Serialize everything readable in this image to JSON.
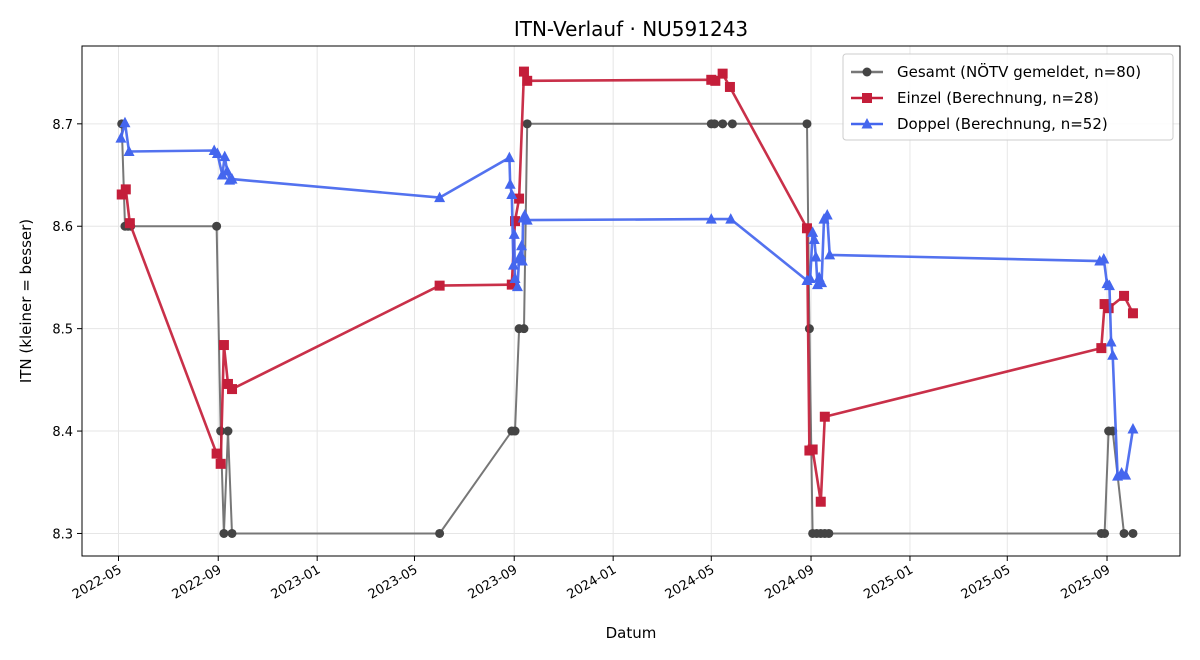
{
  "chart_data": {
    "type": "line",
    "title": "ITN-Verlauf · NU591243",
    "xlabel": "Datum",
    "ylabel": "ITN  (kleiner = besser)",
    "xlim": [
      "2022-03-17",
      "2025-11-30"
    ],
    "ylim": [
      8.278,
      8.776
    ],
    "x_ticks": [
      "2022-05",
      "2022-09",
      "2023-01",
      "2023-05",
      "2023-09",
      "2024-01",
      "2024-05",
      "2024-09",
      "2025-01",
      "2025-05",
      "2025-09"
    ],
    "y_ticks": [
      8.3,
      8.4,
      8.5,
      8.6,
      8.7
    ],
    "grid": true,
    "legend_position": "top-right",
    "series": [
      {
        "name": "Gesamt (NÖTV gemeldet, n=80)",
        "color": "#555555",
        "marker": "circle",
        "points": [
          [
            "2022-05-05",
            8.7
          ],
          [
            "2022-05-09",
            8.6
          ],
          [
            "2022-05-13",
            8.6
          ],
          [
            "2022-05-16",
            8.6
          ],
          [
            "2022-08-30",
            8.6
          ],
          [
            "2022-09-04",
            8.4
          ],
          [
            "2022-09-08",
            8.3
          ],
          [
            "2022-09-13",
            8.4
          ],
          [
            "2022-09-18",
            8.3
          ],
          [
            "2023-06-01",
            8.3
          ],
          [
            "2023-08-29",
            8.4
          ],
          [
            "2023-09-02",
            8.4
          ],
          [
            "2023-09-07",
            8.5
          ],
          [
            "2023-09-13",
            8.5
          ],
          [
            "2023-09-17",
            8.7
          ],
          [
            "2024-05-01",
            8.7
          ],
          [
            "2024-05-05",
            8.7
          ],
          [
            "2024-05-15",
            8.7
          ],
          [
            "2024-05-27",
            8.7
          ],
          [
            "2024-08-27",
            8.7
          ],
          [
            "2024-08-30",
            8.5
          ],
          [
            "2024-09-03",
            8.3
          ],
          [
            "2024-09-08",
            8.3
          ],
          [
            "2024-09-13",
            8.3
          ],
          [
            "2024-09-18",
            8.3
          ],
          [
            "2024-09-23",
            8.3
          ],
          [
            "2025-08-25",
            8.3
          ],
          [
            "2025-08-29",
            8.3
          ],
          [
            "2025-09-03",
            8.4
          ],
          [
            "2025-09-08",
            8.4
          ],
          [
            "2025-09-22",
            8.3
          ],
          [
            "2025-10-03",
            8.3
          ]
        ]
      },
      {
        "name": "Einzel (Berechnung, n=28)",
        "color": "#c41e3a",
        "marker": "square",
        "points": [
          [
            "2022-05-05",
            8.631
          ],
          [
            "2022-05-10",
            8.636
          ],
          [
            "2022-05-15",
            8.603
          ],
          [
            "2022-08-30",
            8.378
          ],
          [
            "2022-09-04",
            8.368
          ],
          [
            "2022-09-08",
            8.484
          ],
          [
            "2022-09-13",
            8.446
          ],
          [
            "2022-09-18",
            8.441
          ],
          [
            "2023-06-01",
            8.542
          ],
          [
            "2023-08-29",
            8.543
          ],
          [
            "2023-09-02",
            8.605
          ],
          [
            "2023-09-07",
            8.627
          ],
          [
            "2023-09-13",
            8.751
          ],
          [
            "2023-09-17",
            8.742
          ],
          [
            "2024-05-01",
            8.743
          ],
          [
            "2024-05-06",
            8.742
          ],
          [
            "2024-05-15",
            8.749
          ],
          [
            "2024-05-24",
            8.736
          ],
          [
            "2024-08-27",
            8.598
          ],
          [
            "2024-08-30",
            8.381
          ],
          [
            "2024-09-03",
            8.382
          ],
          [
            "2024-09-13",
            8.331
          ],
          [
            "2024-09-18",
            8.414
          ],
          [
            "2025-08-25",
            8.481
          ],
          [
            "2025-08-29",
            8.524
          ],
          [
            "2025-09-03",
            8.52
          ],
          [
            "2025-09-22",
            8.532
          ],
          [
            "2025-10-03",
            8.515
          ]
        ]
      },
      {
        "name": "Doppel (Berechnung, n=52)",
        "color": "#4466ee",
        "marker": "triangle",
        "points": [
          [
            "2022-05-04",
            8.686
          ],
          [
            "2022-05-09",
            8.701
          ],
          [
            "2022-05-14",
            8.673
          ],
          [
            "2022-08-27",
            8.674
          ],
          [
            "2022-08-31",
            8.671
          ],
          [
            "2022-09-06",
            8.65
          ],
          [
            "2022-09-09",
            8.668
          ],
          [
            "2022-09-12",
            8.654
          ],
          [
            "2022-09-15",
            8.645
          ],
          [
            "2022-09-18",
            8.646
          ],
          [
            "2023-06-01",
            8.628
          ],
          [
            "2023-08-26",
            8.667
          ],
          [
            "2023-08-27",
            8.641
          ],
          [
            "2023-08-29",
            8.631
          ],
          [
            "2023-08-31",
            8.562
          ],
          [
            "2023-09-01",
            8.592
          ],
          [
            "2023-09-02",
            8.549
          ],
          [
            "2023-09-05",
            8.541
          ],
          [
            "2023-09-07",
            8.568
          ],
          [
            "2023-09-09",
            8.572
          ],
          [
            "2023-09-10",
            8.581
          ],
          [
            "2023-09-11",
            8.566
          ],
          [
            "2023-09-12",
            8.608
          ],
          [
            "2023-09-14",
            8.611
          ],
          [
            "2023-09-17",
            8.606
          ],
          [
            "2024-05-01",
            8.607
          ],
          [
            "2024-05-25",
            8.607
          ],
          [
            "2024-08-27",
            8.547
          ],
          [
            "2024-08-31",
            8.549
          ],
          [
            "2024-09-03",
            8.594
          ],
          [
            "2024-09-05",
            8.587
          ],
          [
            "2024-09-07",
            8.57
          ],
          [
            "2024-09-09",
            8.543
          ],
          [
            "2024-09-11",
            8.55
          ],
          [
            "2024-09-14",
            8.545
          ],
          [
            "2024-09-17",
            8.607
          ],
          [
            "2024-09-21",
            8.611
          ],
          [
            "2024-09-24",
            8.572
          ],
          [
            "2025-08-23",
            8.566
          ],
          [
            "2025-08-28",
            8.568
          ],
          [
            "2025-09-01",
            8.544
          ],
          [
            "2025-09-04",
            8.542
          ],
          [
            "2025-09-06",
            8.487
          ],
          [
            "2025-09-08",
            8.474
          ],
          [
            "2025-09-14",
            8.356
          ],
          [
            "2025-09-19",
            8.359
          ],
          [
            "2025-09-24",
            8.357
          ],
          [
            "2025-10-03",
            8.402
          ]
        ]
      }
    ]
  }
}
